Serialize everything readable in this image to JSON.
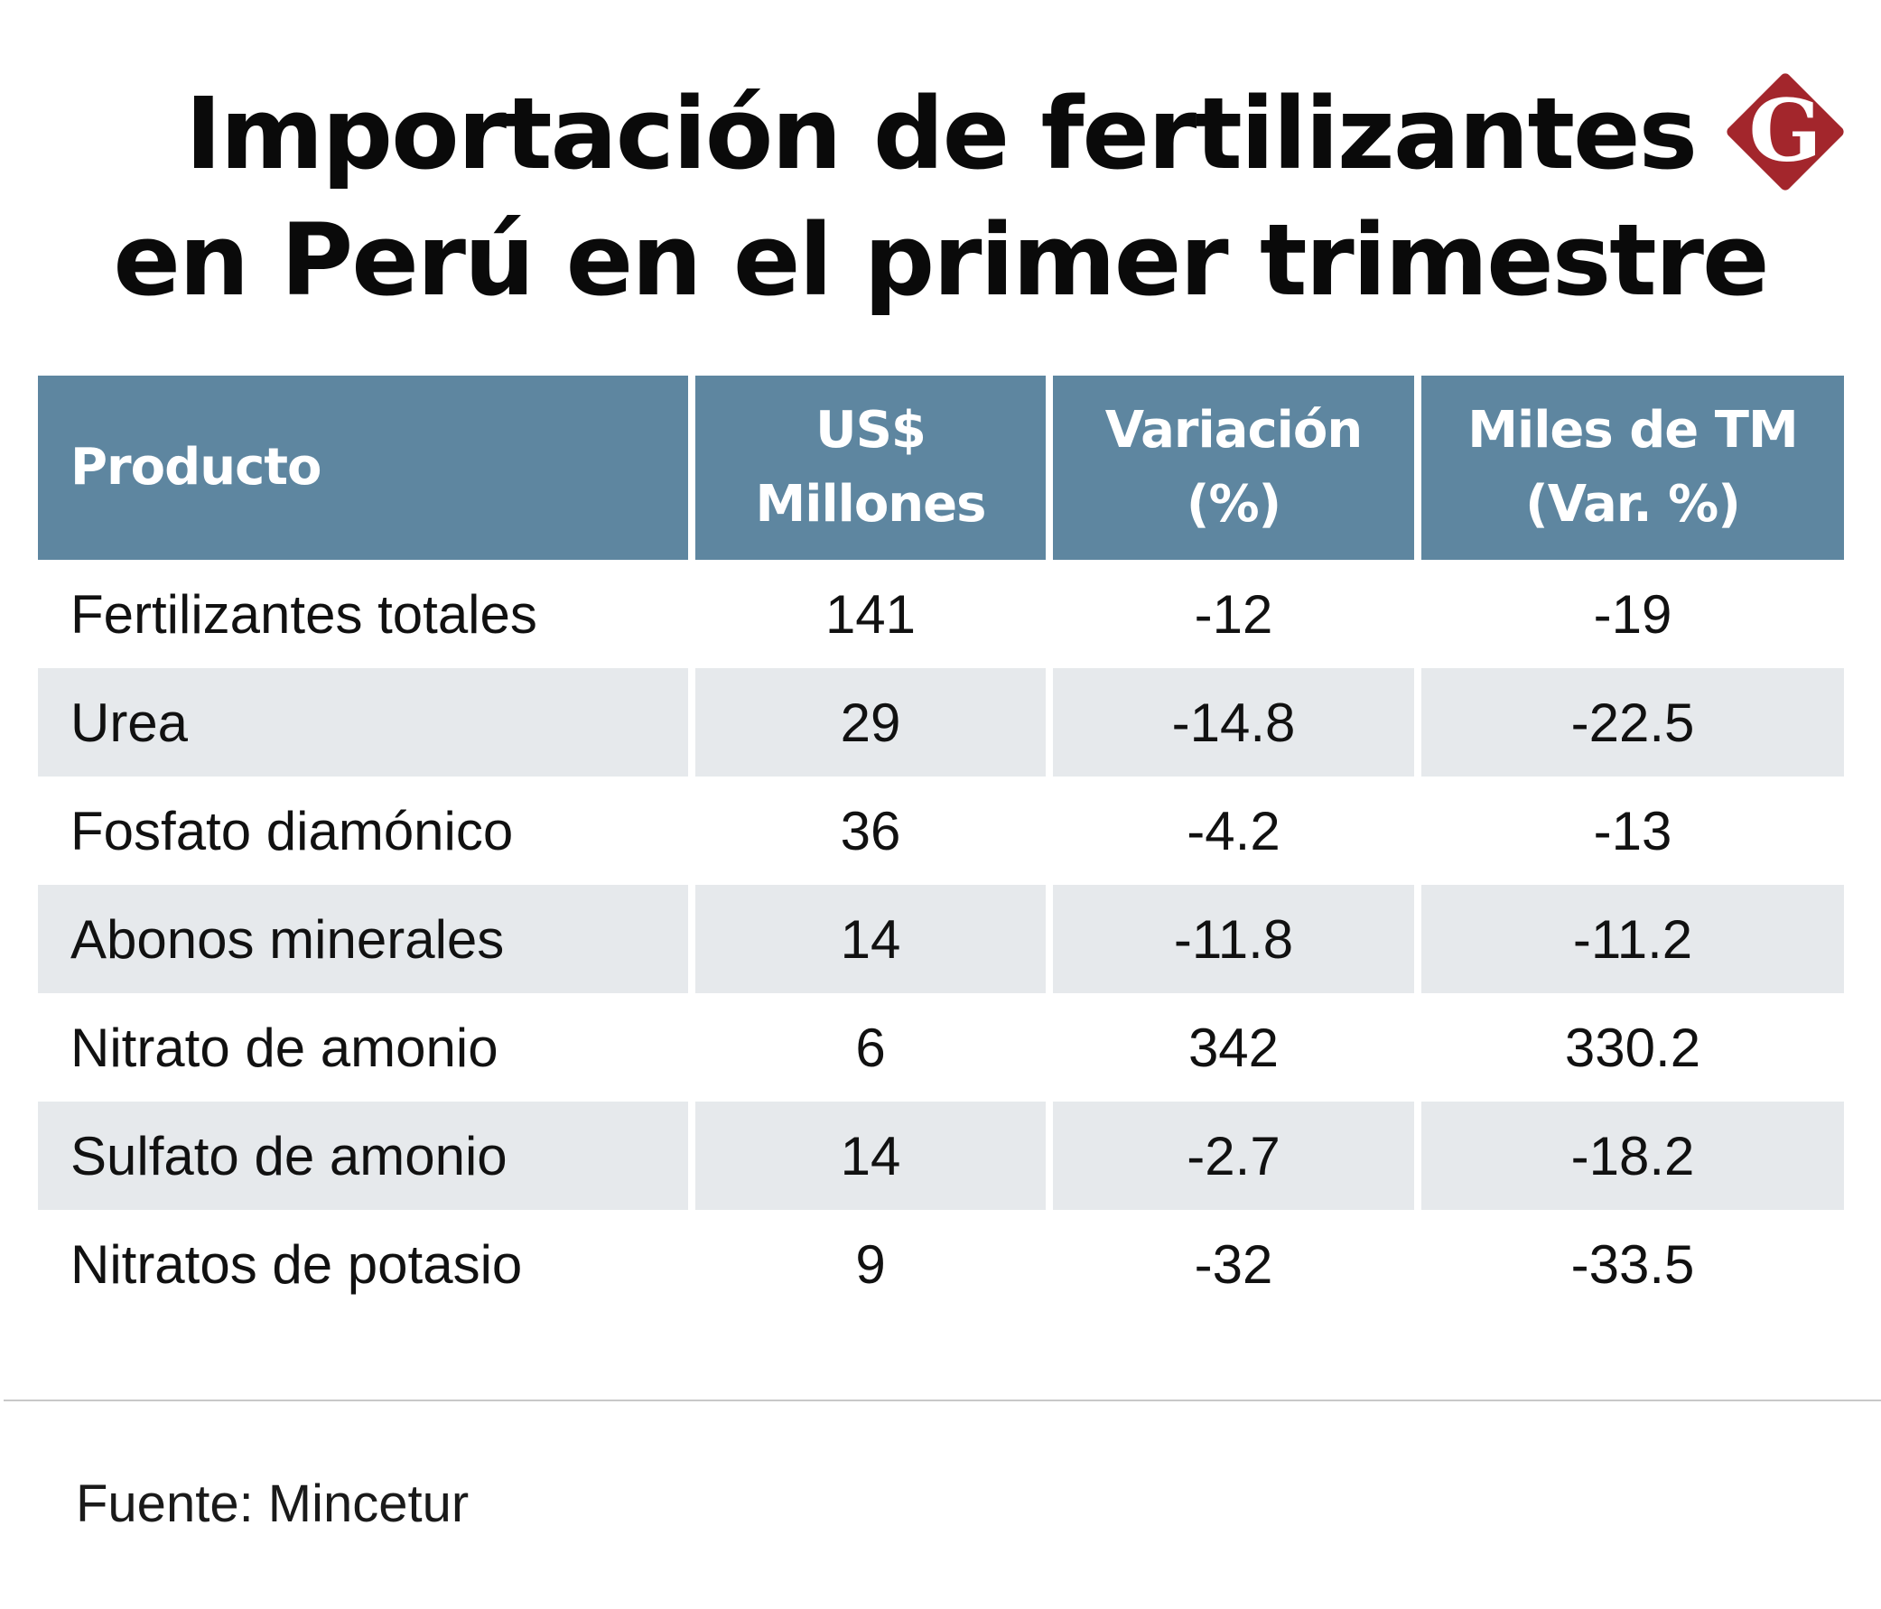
{
  "title": {
    "line1": "Importación de fertilizantes",
    "line2": "en Perú en el primer trimestre"
  },
  "logo": {
    "letter": "G",
    "color": "#a3262c",
    "icon": "gestion-logo-icon"
  },
  "colors": {
    "header_bg": "#5e86a0",
    "stripe_bg": "#e6e9ec"
  },
  "chart_data": {
    "type": "table",
    "title": "Importación de fertilizantes en Perú en el primer trimestre",
    "columns": [
      {
        "line1": "Producto",
        "line2": ""
      },
      {
        "line1": "US$",
        "line2": "Millones"
      },
      {
        "line1": "Variación",
        "line2": "(%)"
      },
      {
        "line1": "Miles de TM",
        "line2": "(Var. %)"
      }
    ],
    "rows": [
      [
        "Fertilizantes totales",
        "141",
        "-12",
        "-19"
      ],
      [
        "Urea",
        "29",
        "-14.8",
        "-22.5"
      ],
      [
        "Fosfato diamónico",
        "36",
        "-4.2",
        "-13"
      ],
      [
        "Abonos minerales",
        "14",
        "-11.8",
        "-11.2"
      ],
      [
        "Nitrato de amonio",
        "6",
        "342",
        "330.2"
      ],
      [
        "Sulfato de amonio",
        "14",
        "-2.7",
        "-18.2"
      ],
      [
        "Nitratos de potasio",
        "9",
        "-32",
        "-33.5"
      ]
    ]
  },
  "source": "Fuente: Mincetur"
}
